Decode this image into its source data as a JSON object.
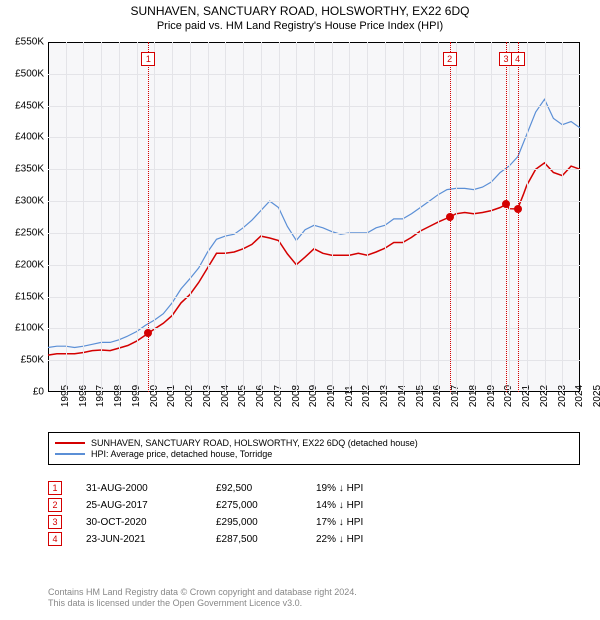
{
  "title": "SUNHAVEN, SANCTUARY ROAD, HOLSWORTHY, EX22 6DQ",
  "subtitle": "Price paid vs. HM Land Registry's House Price Index (HPI)",
  "chart": {
    "type": "line",
    "background_color": "#f7f7f9",
    "grid_color": "#e4e4e8",
    "border_color": "#000000",
    "x": {
      "min": 1995,
      "max": 2025,
      "ticks": [
        1995,
        1996,
        1997,
        1998,
        1999,
        2000,
        2001,
        2002,
        2003,
        2004,
        2005,
        2006,
        2007,
        2008,
        2009,
        2010,
        2011,
        2012,
        2013,
        2014,
        2015,
        2016,
        2017,
        2018,
        2019,
        2020,
        2021,
        2022,
        2023,
        2024,
        2025
      ]
    },
    "y": {
      "min": 0,
      "max": 550000,
      "ticks": [
        0,
        50000,
        100000,
        150000,
        200000,
        250000,
        300000,
        350000,
        400000,
        450000,
        500000,
        550000
      ],
      "tick_labels": [
        "£0",
        "£50K",
        "£100K",
        "£150K",
        "£200K",
        "£250K",
        "£300K",
        "£350K",
        "£400K",
        "£450K",
        "£500K",
        "£550K"
      ]
    },
    "series": [
      {
        "name": "SUNHAVEN, SANCTUARY ROAD, HOLSWORTHY, EX22 6DQ (detached house)",
        "color": "#d40000",
        "width": 1.5,
        "data": [
          [
            1995,
            58000
          ],
          [
            1995.5,
            60000
          ],
          [
            1996,
            60000
          ],
          [
            1996.5,
            60000
          ],
          [
            1997,
            62000
          ],
          [
            1997.5,
            65000
          ],
          [
            1998,
            66000
          ],
          [
            1998.5,
            65000
          ],
          [
            1999,
            69000
          ],
          [
            1999.5,
            73000
          ],
          [
            2000,
            80000
          ],
          [
            2000.66,
            92500
          ],
          [
            2001,
            99000
          ],
          [
            2001.5,
            108000
          ],
          [
            2002,
            120000
          ],
          [
            2002.5,
            140000
          ],
          [
            2003,
            153000
          ],
          [
            2003.5,
            172000
          ],
          [
            2004,
            195000
          ],
          [
            2004.5,
            218000
          ],
          [
            2005,
            218000
          ],
          [
            2005.5,
            220000
          ],
          [
            2006,
            225000
          ],
          [
            2006.5,
            232000
          ],
          [
            2007,
            245000
          ],
          [
            2007.5,
            242000
          ],
          [
            2008,
            238000
          ],
          [
            2008.5,
            217000
          ],
          [
            2009,
            200000
          ],
          [
            2009.5,
            212000
          ],
          [
            2010,
            225000
          ],
          [
            2010.5,
            218000
          ],
          [
            2011,
            215000
          ],
          [
            2011.5,
            215000
          ],
          [
            2012,
            215000
          ],
          [
            2012.5,
            218000
          ],
          [
            2013,
            215000
          ],
          [
            2013.5,
            220000
          ],
          [
            2014,
            226000
          ],
          [
            2014.5,
            235000
          ],
          [
            2015,
            235000
          ],
          [
            2015.5,
            243000
          ],
          [
            2016,
            253000
          ],
          [
            2016.5,
            260000
          ],
          [
            2017,
            267000
          ],
          [
            2017.65,
            275000
          ],
          [
            2018,
            280000
          ],
          [
            2018.5,
            282000
          ],
          [
            2019,
            280000
          ],
          [
            2019.5,
            282000
          ],
          [
            2020,
            285000
          ],
          [
            2020.5,
            290000
          ],
          [
            2020.83,
            295000
          ],
          [
            2021,
            288000
          ],
          [
            2021.48,
            287500
          ],
          [
            2021.8,
            310000
          ],
          [
            2022,
            325000
          ],
          [
            2022.5,
            350000
          ],
          [
            2023,
            360000
          ],
          [
            2023.5,
            345000
          ],
          [
            2024,
            340000
          ],
          [
            2024.5,
            355000
          ],
          [
            2025,
            350000
          ]
        ]
      },
      {
        "name": "HPI: Average price, detached house, Torridge",
        "color": "#5b8fd6",
        "width": 1.2,
        "data": [
          [
            1995,
            70000
          ],
          [
            1995.5,
            72000
          ],
          [
            1996,
            72000
          ],
          [
            1996.5,
            70000
          ],
          [
            1997,
            72000
          ],
          [
            1997.5,
            75000
          ],
          [
            1998,
            78000
          ],
          [
            1998.5,
            78000
          ],
          [
            1999,
            82000
          ],
          [
            1999.5,
            88000
          ],
          [
            2000,
            95000
          ],
          [
            2000.5,
            105000
          ],
          [
            2001,
            113000
          ],
          [
            2001.5,
            123000
          ],
          [
            2002,
            140000
          ],
          [
            2002.5,
            162000
          ],
          [
            2003,
            178000
          ],
          [
            2003.5,
            195000
          ],
          [
            2004,
            220000
          ],
          [
            2004.5,
            240000
          ],
          [
            2005,
            245000
          ],
          [
            2005.5,
            248000
          ],
          [
            2006,
            258000
          ],
          [
            2006.5,
            270000
          ],
          [
            2007,
            285000
          ],
          [
            2007.5,
            300000
          ],
          [
            2008,
            290000
          ],
          [
            2008.5,
            260000
          ],
          [
            2009,
            238000
          ],
          [
            2009.5,
            255000
          ],
          [
            2010,
            262000
          ],
          [
            2010.5,
            258000
          ],
          [
            2011,
            252000
          ],
          [
            2011.5,
            248000
          ],
          [
            2012,
            250000
          ],
          [
            2012.5,
            250000
          ],
          [
            2013,
            250000
          ],
          [
            2013.5,
            258000
          ],
          [
            2014,
            262000
          ],
          [
            2014.5,
            272000
          ],
          [
            2015,
            272000
          ],
          [
            2015.5,
            280000
          ],
          [
            2016,
            290000
          ],
          [
            2016.5,
            300000
          ],
          [
            2017,
            310000
          ],
          [
            2017.5,
            318000
          ],
          [
            2018,
            320000
          ],
          [
            2018.5,
            320000
          ],
          [
            2019,
            318000
          ],
          [
            2019.5,
            322000
          ],
          [
            2020,
            330000
          ],
          [
            2020.5,
            345000
          ],
          [
            2021,
            355000
          ],
          [
            2021.5,
            370000
          ],
          [
            2022,
            405000
          ],
          [
            2022.5,
            440000
          ],
          [
            2023,
            460000
          ],
          [
            2023.5,
            430000
          ],
          [
            2024,
            420000
          ],
          [
            2024.5,
            425000
          ],
          [
            2025,
            415000
          ]
        ]
      }
    ],
    "markers": [
      {
        "x": 2000.66,
        "y": 92500,
        "color": "#d40000"
      },
      {
        "x": 2017.65,
        "y": 275000,
        "color": "#d40000"
      },
      {
        "x": 2020.83,
        "y": 295000,
        "color": "#d40000"
      },
      {
        "x": 2021.48,
        "y": 287500,
        "color": "#d40000"
      }
    ],
    "event_lines": [
      {
        "x": 2000.66,
        "label": "1",
        "color": "#d40000"
      },
      {
        "x": 2017.65,
        "label": "2",
        "color": "#d40000"
      },
      {
        "x": 2020.83,
        "label": "3",
        "color": "#d40000"
      },
      {
        "x": 2021.48,
        "label": "4",
        "color": "#d40000"
      }
    ]
  },
  "legend": {
    "rows": [
      {
        "color": "#d40000",
        "label": "SUNHAVEN, SANCTUARY ROAD, HOLSWORTHY, EX22 6DQ (detached house)"
      },
      {
        "color": "#5b8fd6",
        "label": "HPI: Average price, detached house, Torridge"
      }
    ]
  },
  "events": [
    {
      "num": "1",
      "date": "31-AUG-2000",
      "price": "£92,500",
      "pct": "19% ↓ HPI"
    },
    {
      "num": "2",
      "date": "25-AUG-2017",
      "price": "£275,000",
      "pct": "14% ↓ HPI"
    },
    {
      "num": "3",
      "date": "30-OCT-2020",
      "price": "£295,000",
      "pct": "17% ↓ HPI"
    },
    {
      "num": "4",
      "date": "23-JUN-2021",
      "price": "£287,500",
      "pct": "22% ↓ HPI"
    }
  ],
  "footer": {
    "line1": "Contains HM Land Registry data © Crown copyright and database right 2024.",
    "line2": "This data is licensed under the Open Government Licence v3.0."
  }
}
